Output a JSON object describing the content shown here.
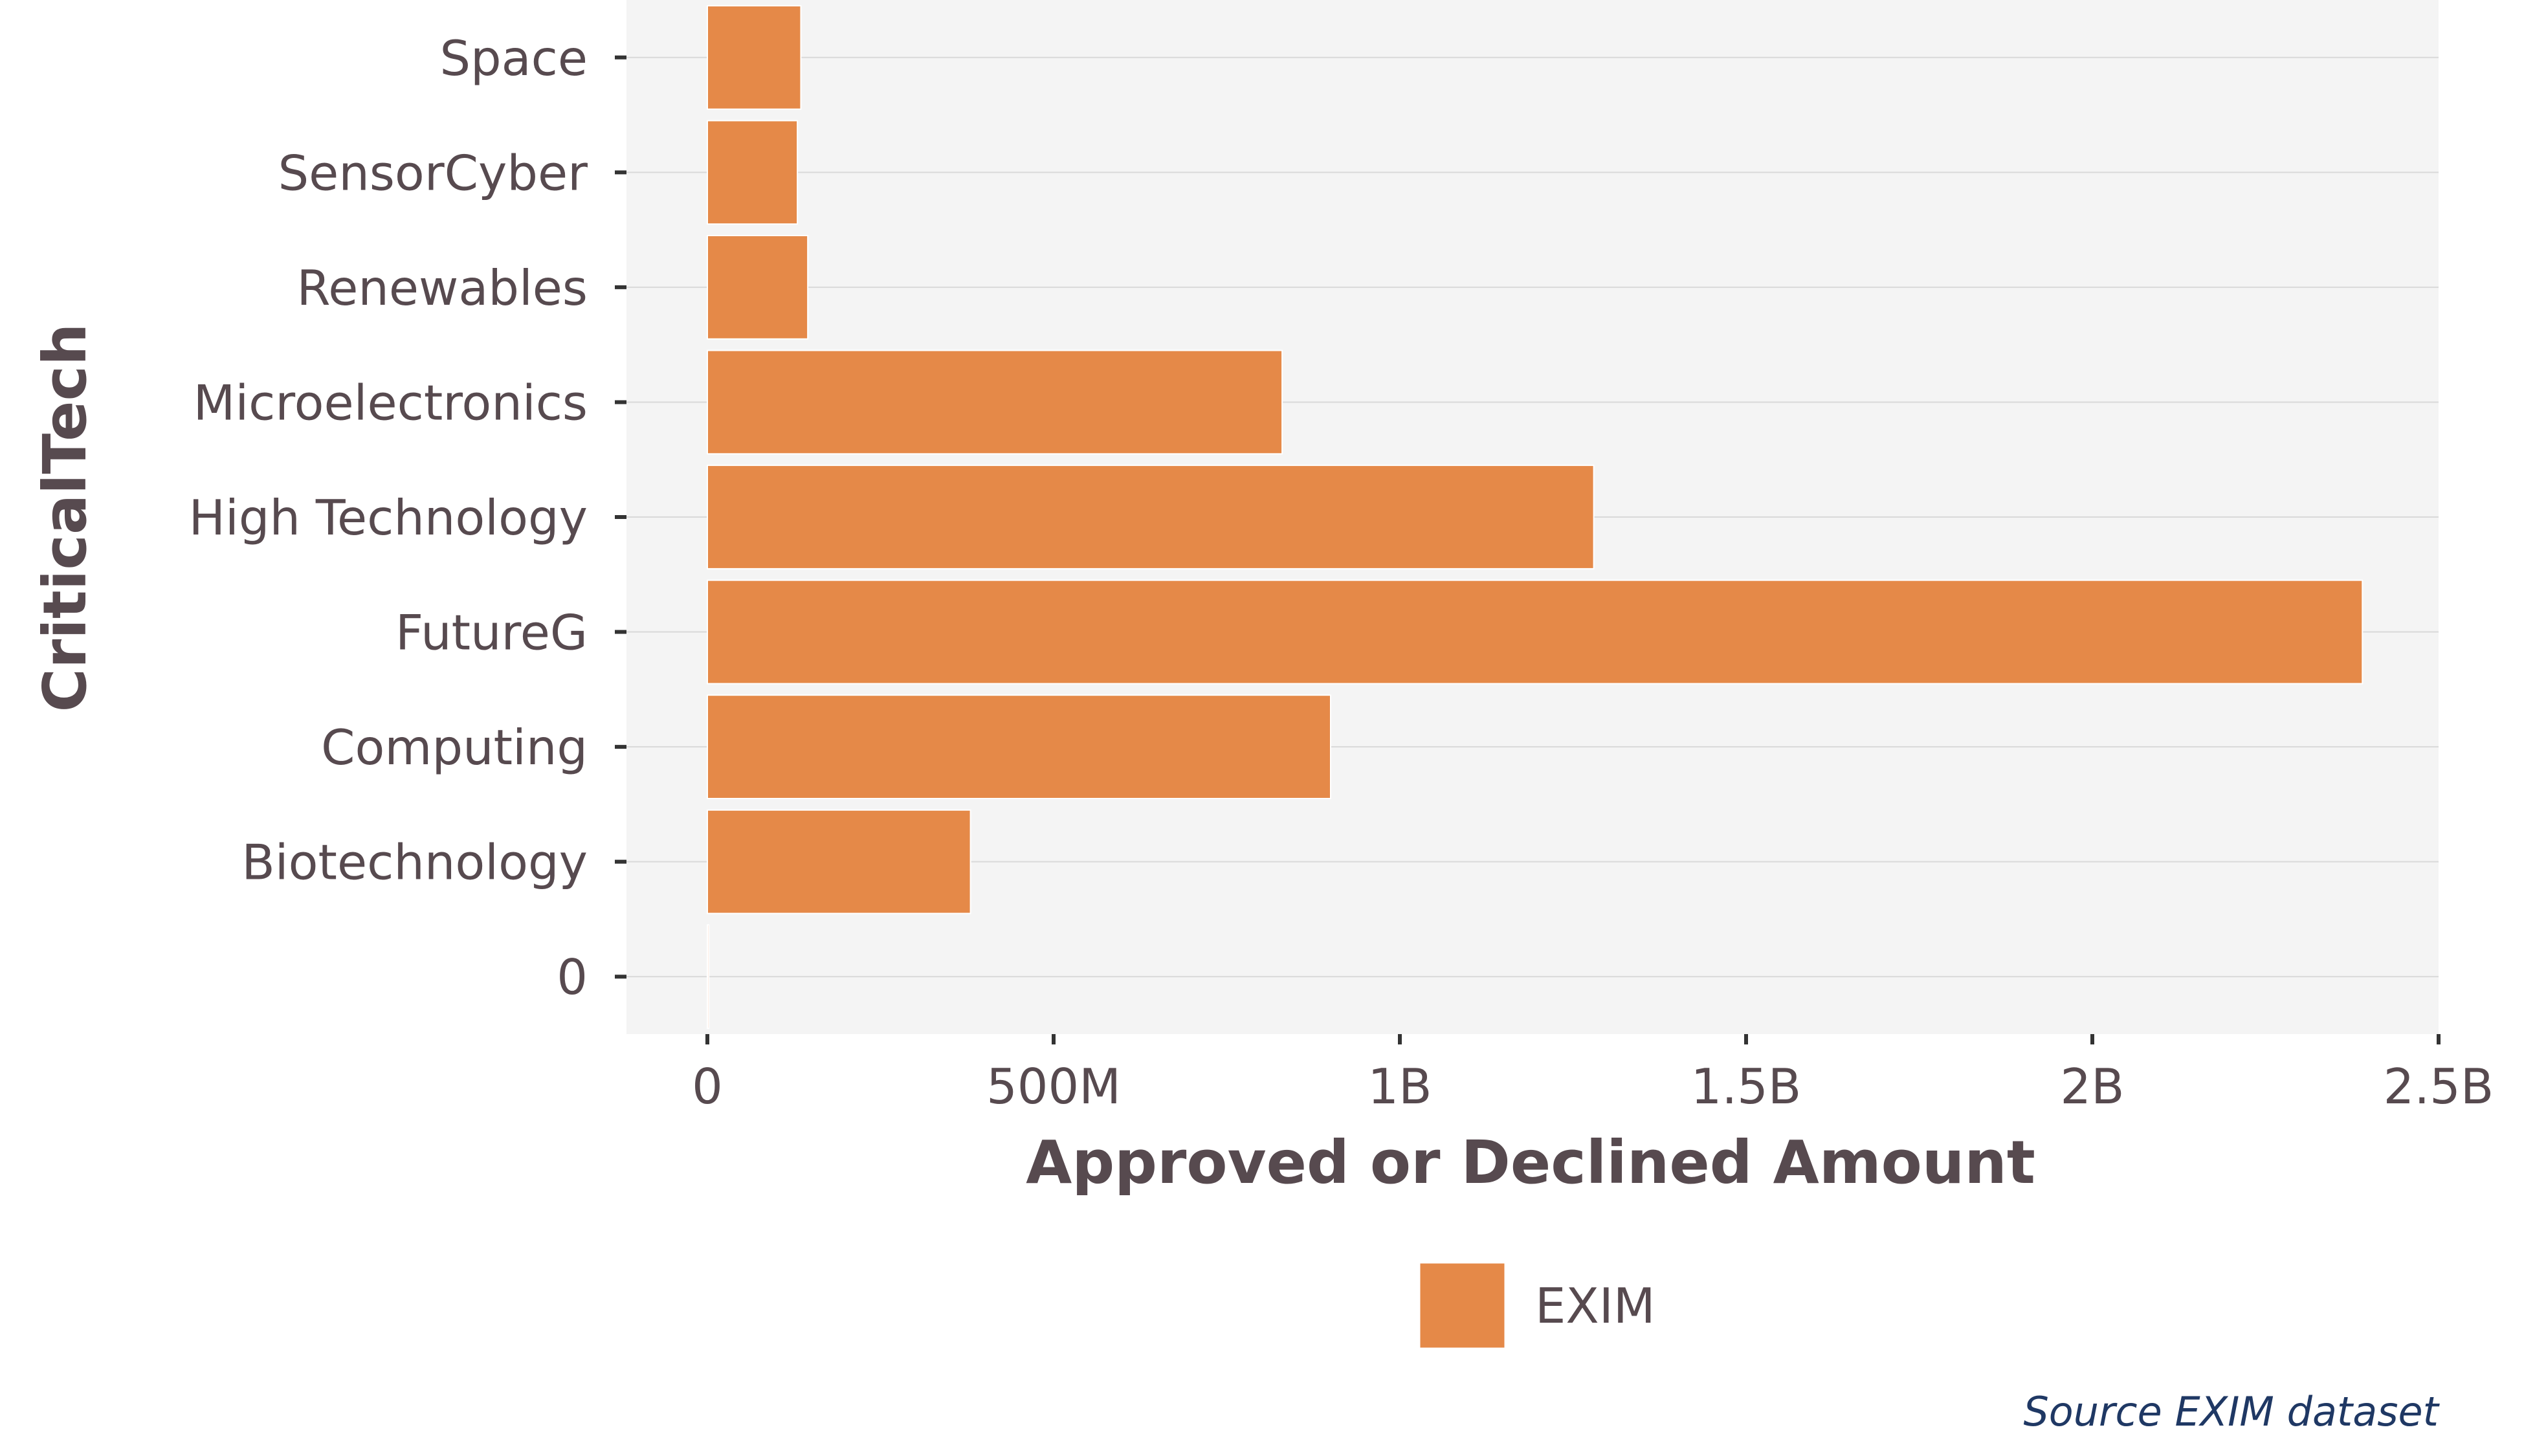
{
  "chart_data": {
    "type": "bar",
    "orientation": "horizontal",
    "categories": [
      "0",
      "Biotechnology",
      "Computing",
      "FutureG",
      "High Technology",
      "Microelectronics",
      "Renewables",
      "SensorCyber",
      "Space"
    ],
    "series": [
      {
        "name": "EXIM",
        "values": [
          2000000,
          380000000,
          900000000,
          2390000000,
          1280000000,
          830000000,
          145000000,
          130000000,
          135000000
        ]
      }
    ],
    "x_ticks": [
      0,
      500000000,
      1000000000,
      1500000000,
      2000000000,
      2500000000
    ],
    "x_tick_labels": [
      "0",
      "500M",
      "1B",
      "1.5B",
      "2B",
      "2.5B"
    ],
    "xlim": [
      -120000000,
      2500000000
    ],
    "xlabel": "Approved or Declined Amount",
    "ylabel": "CriticalTech",
    "legend_position": "bottom",
    "grid": true,
    "caption": "Source EXIM dataset",
    "colors": {
      "bar": "#e58948",
      "panel": "#f4f4f4",
      "grid": "#d9d9d9",
      "text": "#574a4f",
      "caption": "#1f3864"
    }
  }
}
